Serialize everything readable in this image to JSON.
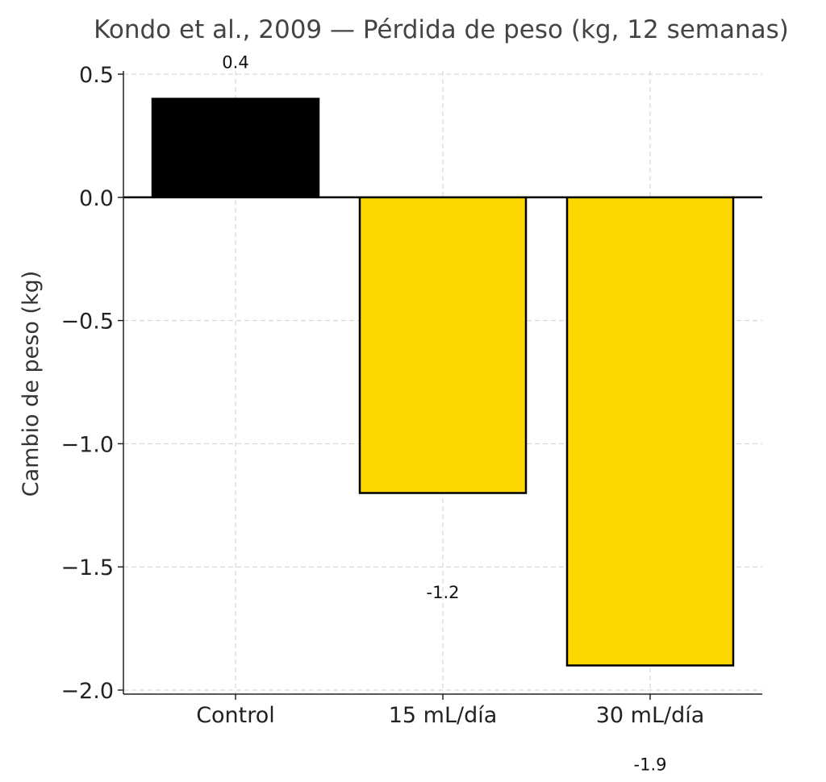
{
  "chart_data": {
    "type": "bar",
    "title": "Kondo et al., 2009 — Pérdida de peso (kg, 12 semanas)",
    "xlabel": "",
    "ylabel": "Cambio de peso (kg)",
    "categories": [
      "Control",
      "15 mL/día",
      "30 mL/día"
    ],
    "values": [
      0.4,
      -1.2,
      -1.9
    ],
    "data_labels": [
      "0.4",
      "-1.2",
      "-1.9"
    ],
    "bar_colors": [
      "#000000",
      "#FFD700",
      "#FFD700"
    ],
    "edge_color": "#000000",
    "ylim": [
      -2.0,
      0.5
    ],
    "yticks": [
      0.5,
      0.0,
      -0.5,
      -1.0,
      -1.5,
      -2.0
    ],
    "ytick_labels": [
      "0.5",
      "0.0",
      "−0.5",
      "−1.0",
      "−1.5",
      "−2.0"
    ],
    "grid": true,
    "legend": "none"
  }
}
